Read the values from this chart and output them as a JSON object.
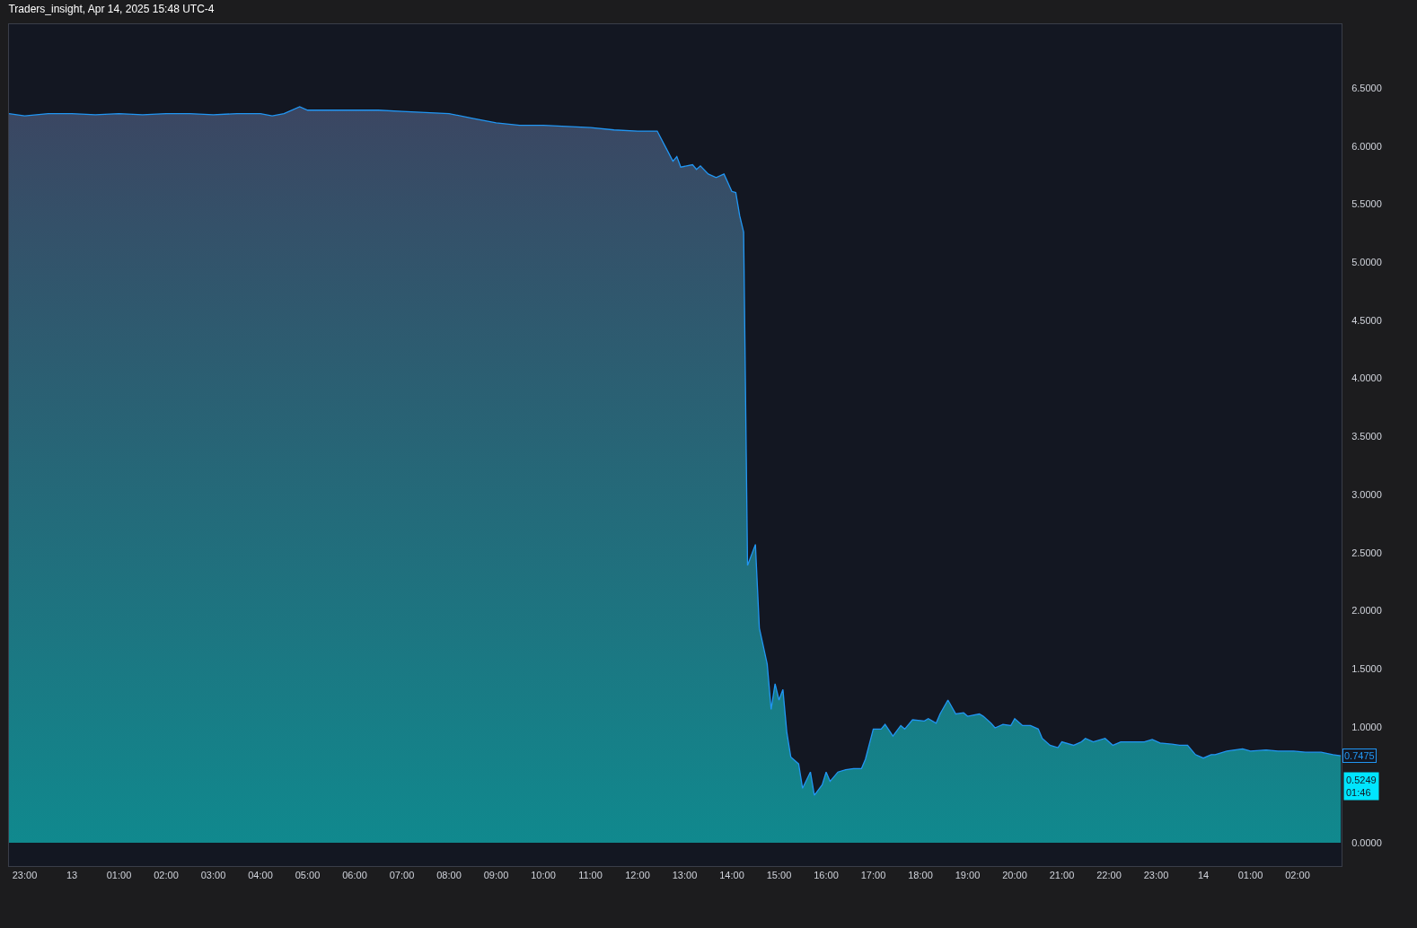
{
  "chart_data": {
    "type": "area",
    "title": "Traders_insight, Apr 14, 2025 15:48 UTC-4",
    "x": [
      "2025-04-12T22:40",
      "2025-04-12T23:00",
      "2025-04-12T23:30",
      "2025-04-13T00:00",
      "2025-04-13T00:30",
      "2025-04-13T01:00",
      "2025-04-13T01:30",
      "2025-04-13T02:00",
      "2025-04-13T02:30",
      "2025-04-13T03:00",
      "2025-04-13T03:30",
      "2025-04-13T04:00",
      "2025-04-13T04:15",
      "2025-04-13T04:30",
      "2025-04-13T04:50",
      "2025-04-13T05:00",
      "2025-04-13T05:30",
      "2025-04-13T06:00",
      "2025-04-13T06:30",
      "2025-04-13T07:00",
      "2025-04-13T07:30",
      "2025-04-13T08:00",
      "2025-04-13T08:30",
      "2025-04-13T09:00",
      "2025-04-13T09:30",
      "2025-04-13T10:00",
      "2025-04-13T10:30",
      "2025-04-13T11:00",
      "2025-04-13T11:30",
      "2025-04-13T12:00",
      "2025-04-13T12:25",
      "2025-04-13T12:35",
      "2025-04-13T12:45",
      "2025-04-13T12:50",
      "2025-04-13T12:55",
      "2025-04-13T13:10",
      "2025-04-13T13:15",
      "2025-04-13T13:20",
      "2025-04-13T13:30",
      "2025-04-13T13:40",
      "2025-04-13T13:50",
      "2025-04-13T14:00",
      "2025-04-13T14:05",
      "2025-04-13T14:10",
      "2025-04-13T14:15",
      "2025-04-13T14:20",
      "2025-04-13T14:30",
      "2025-04-13T14:35",
      "2025-04-13T14:45",
      "2025-04-13T14:50",
      "2025-04-13T14:55",
      "2025-04-13T15:00",
      "2025-04-13T15:05",
      "2025-04-13T15:10",
      "2025-04-13T15:15",
      "2025-04-13T15:25",
      "2025-04-13T15:30",
      "2025-04-13T15:40",
      "2025-04-13T15:45",
      "2025-04-13T15:55",
      "2025-04-13T16:00",
      "2025-04-13T16:05",
      "2025-04-13T16:15",
      "2025-04-13T16:25",
      "2025-04-13T16:35",
      "2025-04-13T16:45",
      "2025-04-13T16:50",
      "2025-04-13T17:00",
      "2025-04-13T17:10",
      "2025-04-13T17:15",
      "2025-04-13T17:25",
      "2025-04-13T17:35",
      "2025-04-13T17:40",
      "2025-04-13T17:50",
      "2025-04-13T18:05",
      "2025-04-13T18:10",
      "2025-04-13T18:20",
      "2025-04-13T18:25",
      "2025-04-13T18:35",
      "2025-04-13T18:45",
      "2025-04-13T18:55",
      "2025-04-13T19:00",
      "2025-04-13T19:15",
      "2025-04-13T19:20",
      "2025-04-13T19:30",
      "2025-04-13T19:35",
      "2025-04-13T19:45",
      "2025-04-13T19:55",
      "2025-04-13T20:00",
      "2025-04-13T20:10",
      "2025-04-13T20:20",
      "2025-04-13T20:30",
      "2025-04-13T20:35",
      "2025-04-13T20:45",
      "2025-04-13T20:55",
      "2025-04-13T21:00",
      "2025-04-13T21:15",
      "2025-04-13T21:25",
      "2025-04-13T21:30",
      "2025-04-13T21:40",
      "2025-04-13T21:55",
      "2025-04-13T22:05",
      "2025-04-13T22:15",
      "2025-04-13T22:30",
      "2025-04-13T22:45",
      "2025-04-13T22:55",
      "2025-04-13T23:05",
      "2025-04-13T23:20",
      "2025-04-13T23:30",
      "2025-04-13T23:40",
      "2025-04-13T23:50",
      "2025-04-14T00:00",
      "2025-04-14T00:10",
      "2025-04-14T00:15",
      "2025-04-14T00:30",
      "2025-04-14T00:40",
      "2025-04-14T00:50",
      "2025-04-14T01:00",
      "2025-04-14T01:20",
      "2025-04-14T01:35",
      "2025-04-14T01:55",
      "2025-04-14T02:10",
      "2025-04-14T02:30",
      "2025-04-14T02:45",
      "2025-04-14T02:55"
    ],
    "series": [
      {
        "color": "#2196f3",
        "values": [
          6.28,
          6.26,
          6.28,
          6.28,
          6.27,
          6.28,
          6.27,
          6.28,
          6.28,
          6.27,
          6.28,
          6.28,
          6.26,
          6.28,
          6.34,
          6.31,
          6.31,
          6.31,
          6.31,
          6.3,
          6.29,
          6.28,
          6.24,
          6.2,
          6.18,
          6.18,
          6.17,
          6.16,
          6.14,
          6.13,
          6.13,
          6.0,
          5.87,
          5.91,
          5.82,
          5.84,
          5.8,
          5.83,
          5.76,
          5.73,
          5.76,
          5.61,
          5.6,
          5.4,
          5.26,
          2.39,
          2.57,
          1.85,
          1.54,
          1.15,
          1.37,
          1.23,
          1.32,
          0.95,
          0.74,
          0.68,
          0.47,
          0.61,
          0.41,
          0.5,
          0.61,
          0.53,
          0.61,
          0.63,
          0.64,
          0.64,
          0.72,
          0.98,
          0.98,
          1.02,
          0.92,
          1.01,
          0.98,
          1.06,
          1.05,
          1.07,
          1.03,
          1.11,
          1.23,
          1.11,
          1.12,
          1.09,
          1.11,
          1.09,
          1.03,
          0.99,
          1.02,
          1.01,
          1.07,
          1.01,
          1.01,
          0.98,
          0.9,
          0.84,
          0.82,
          0.87,
          0.84,
          0.87,
          0.9,
          0.87,
          0.9,
          0.84,
          0.87,
          0.87,
          0.87,
          0.89,
          0.86,
          0.85,
          0.84,
          0.84,
          0.76,
          0.73,
          0.76,
          0.76,
          0.79,
          0.8,
          0.81,
          0.79,
          0.8,
          0.79,
          0.79,
          0.78,
          0.78,
          0.76,
          0.75
        ]
      }
    ],
    "xlim": [
      "2025-04-12T22:40",
      "2025-04-14T02:56"
    ],
    "xticks": [
      {
        "value": "2025-04-12T23:00",
        "label": "23:00"
      },
      {
        "value": "2025-04-13T00:00",
        "label": "13"
      },
      {
        "value": "2025-04-13T01:00",
        "label": "01:00"
      },
      {
        "value": "2025-04-13T02:00",
        "label": "02:00"
      },
      {
        "value": "2025-04-13T03:00",
        "label": "03:00"
      },
      {
        "value": "2025-04-13T04:00",
        "label": "04:00"
      },
      {
        "value": "2025-04-13T05:00",
        "label": "05:00"
      },
      {
        "value": "2025-04-13T06:00",
        "label": "06:00"
      },
      {
        "value": "2025-04-13T07:00",
        "label": "07:00"
      },
      {
        "value": "2025-04-13T08:00",
        "label": "08:00"
      },
      {
        "value": "2025-04-13T09:00",
        "label": "09:00"
      },
      {
        "value": "2025-04-13T10:00",
        "label": "10:00"
      },
      {
        "value": "2025-04-13T11:00",
        "label": "11:00"
      },
      {
        "value": "2025-04-13T12:00",
        "label": "12:00"
      },
      {
        "value": "2025-04-13T13:00",
        "label": "13:00"
      },
      {
        "value": "2025-04-13T14:00",
        "label": "14:00"
      },
      {
        "value": "2025-04-13T15:00",
        "label": "15:00"
      },
      {
        "value": "2025-04-13T16:00",
        "label": "16:00"
      },
      {
        "value": "2025-04-13T17:00",
        "label": "17:00"
      },
      {
        "value": "2025-04-13T18:00",
        "label": "18:00"
      },
      {
        "value": "2025-04-13T19:00",
        "label": "19:00"
      },
      {
        "value": "2025-04-13T20:00",
        "label": "20:00"
      },
      {
        "value": "2025-04-13T21:00",
        "label": "21:00"
      },
      {
        "value": "2025-04-13T22:00",
        "label": "22:00"
      },
      {
        "value": "2025-04-13T23:00",
        "label": "23:00"
      },
      {
        "value": "2025-04-14T00:00",
        "label": "14"
      },
      {
        "value": "2025-04-14T01:00",
        "label": "01:00"
      },
      {
        "value": "2025-04-14T02:00",
        "label": "02:00"
      }
    ],
    "ylim": [
      -0.2,
      7.05
    ],
    "yticks": [
      {
        "value": 0,
        "label": "0.0000"
      },
      {
        "value": 1,
        "label": "1.0000"
      },
      {
        "value": 1.5,
        "label": "1.5000"
      },
      {
        "value": 2,
        "label": "2.0000"
      },
      {
        "value": 2.5,
        "label": "2.5000"
      },
      {
        "value": 3,
        "label": "3.0000"
      },
      {
        "value": 3.5,
        "label": "3.5000"
      },
      {
        "value": 4,
        "label": "4.0000"
      },
      {
        "value": 4.5,
        "label": "4.5000"
      },
      {
        "value": 5,
        "label": "5.0000"
      },
      {
        "value": 5.5,
        "label": "5.5000"
      },
      {
        "value": 6,
        "label": "6.0000"
      },
      {
        "value": 6.5,
        "label": "6.5000"
      }
    ],
    "annotations": [
      {
        "text": "0.7475",
        "x": "2025-04-14T02:55",
        "y": 0.7475
      },
      "0.5249\n01:46"
    ]
  }
}
